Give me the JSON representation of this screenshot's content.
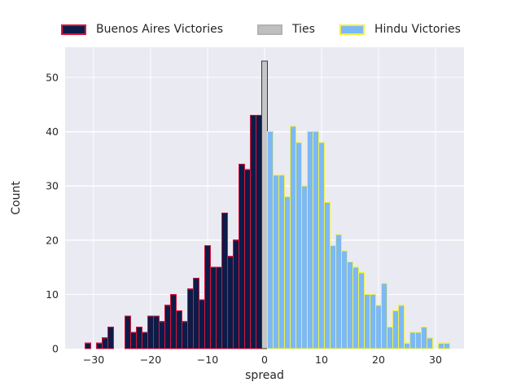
{
  "figure": {
    "background": "#ffffff",
    "plot_background": "#eaeaf2",
    "grid_color": "#ffffff",
    "text_color": "#262626"
  },
  "legend": {
    "position": "top",
    "entries": [
      {
        "label": "Buenos Aires Victories",
        "fill": "#0c1b47",
        "edge": "#dc143c"
      },
      {
        "label": "Ties",
        "fill": "#bfbfbf",
        "edge": "#b3b3b3"
      },
      {
        "label": "Hindu Victories",
        "fill": "#7db9f5",
        "edge": "#f0f043"
      }
    ]
  },
  "chart_data": {
    "type": "bar",
    "subtype": "histogram",
    "title": "",
    "xlabel": "spread",
    "ylabel": "Count",
    "x_tick_values": [
      -30,
      -20,
      -10,
      0,
      10,
      20,
      30
    ],
    "x_tick_labels": [
      "−30",
      "−20",
      "−10",
      "0",
      "10",
      "20",
      "30"
    ],
    "y_tick_values": [
      0,
      10,
      20,
      30,
      40,
      50
    ],
    "y_tick_labels": [
      "0",
      "10",
      "20",
      "30",
      "40",
      "50"
    ],
    "xlim": [
      -35,
      35
    ],
    "ylim": [
      0,
      55.6
    ],
    "bin_width": 1,
    "grid": true,
    "legend_position": "top",
    "series": [
      {
        "name": "Buenos Aires Victories",
        "fill": "#0c1b47",
        "edge": "#dc143c",
        "x": [
          -31,
          -29,
          -28,
          -27,
          -24,
          -23,
          -22,
          -21,
          -20,
          -19,
          -18,
          -17,
          -16,
          -15,
          -14,
          -13,
          -12,
          -11,
          -10,
          -9,
          -8,
          -7,
          -6,
          -5,
          -4,
          -3,
          -2,
          -1
        ],
        "counts": [
          1,
          1,
          2,
          4,
          6,
          3,
          4,
          3,
          6,
          6,
          5,
          8,
          10,
          7,
          5,
          11,
          13,
          9,
          19,
          15,
          15,
          25,
          17,
          20,
          34,
          33,
          43,
          43
        ]
      },
      {
        "name": "Ties",
        "fill": "#c6c6c6",
        "edge": "#3a3a3a",
        "x": [
          0
        ],
        "counts": [
          53
        ]
      },
      {
        "name": "Hindu Victories",
        "fill": "#7db9f5",
        "edge": "#f0f043",
        "x": [
          1,
          2,
          3,
          4,
          5,
          6,
          7,
          8,
          9,
          10,
          11,
          12,
          13,
          14,
          15,
          16,
          17,
          18,
          19,
          20,
          21,
          22,
          23,
          24,
          25,
          26,
          27,
          28,
          29,
          31,
          32
        ],
        "counts": [
          40,
          32,
          32,
          28,
          41,
          38,
          30,
          40,
          40,
          38,
          27,
          19,
          21,
          18,
          16,
          15,
          14,
          10,
          10,
          8,
          12,
          4,
          7,
          8,
          1,
          3,
          3,
          4,
          2,
          1,
          1
        ]
      }
    ]
  }
}
